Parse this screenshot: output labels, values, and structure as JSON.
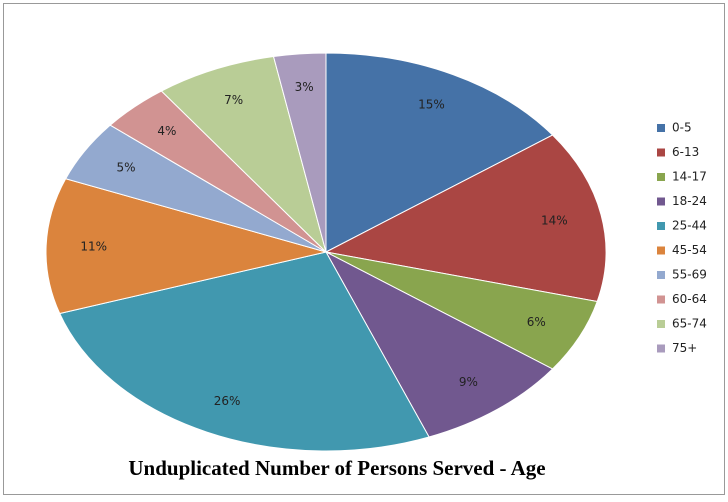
{
  "chart_data": {
    "type": "pie",
    "title": "Unduplicated Number of Persons Served - Age",
    "categories": [
      "0-5",
      "6-13",
      "14-17",
      "18-24",
      "25-44",
      "45-54",
      "55-69",
      "60-64",
      "65-74",
      "75+"
    ],
    "values": [
      15,
      14,
      6,
      9,
      26,
      11,
      5,
      4,
      7,
      3
    ],
    "value_labels": [
      "15%",
      "14%",
      "6%",
      "9%",
      "26%",
      "11%",
      "5%",
      "4%",
      "7%",
      "3%"
    ],
    "colors": [
      "#4572A7",
      "#AA4643",
      "#89A54E",
      "#71588F",
      "#4198AF",
      "#DB843D",
      "#93A9CF",
      "#D19392",
      "#B9CD96",
      "#A99BBD"
    ],
    "legend": "right"
  }
}
